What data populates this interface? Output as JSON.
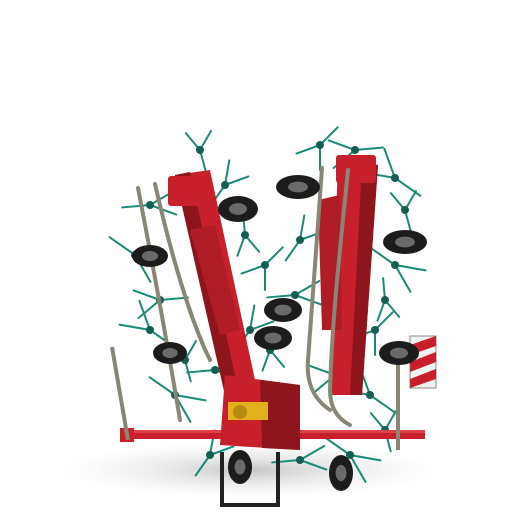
{
  "scene": {
    "subject": "tedder-machine-folded",
    "colors": {
      "background": "#ffffff",
      "frame_red": "#c8202a",
      "frame_dark_red": "#8e151c",
      "tine_teal": "#1a8a78",
      "tire_black": "#1c1c1c",
      "hose_grey": "#8a8676",
      "hub_yellow": "#e1b21c",
      "warning_white": "#f2f2f2",
      "shadow": "#cfcfcf"
    }
  }
}
